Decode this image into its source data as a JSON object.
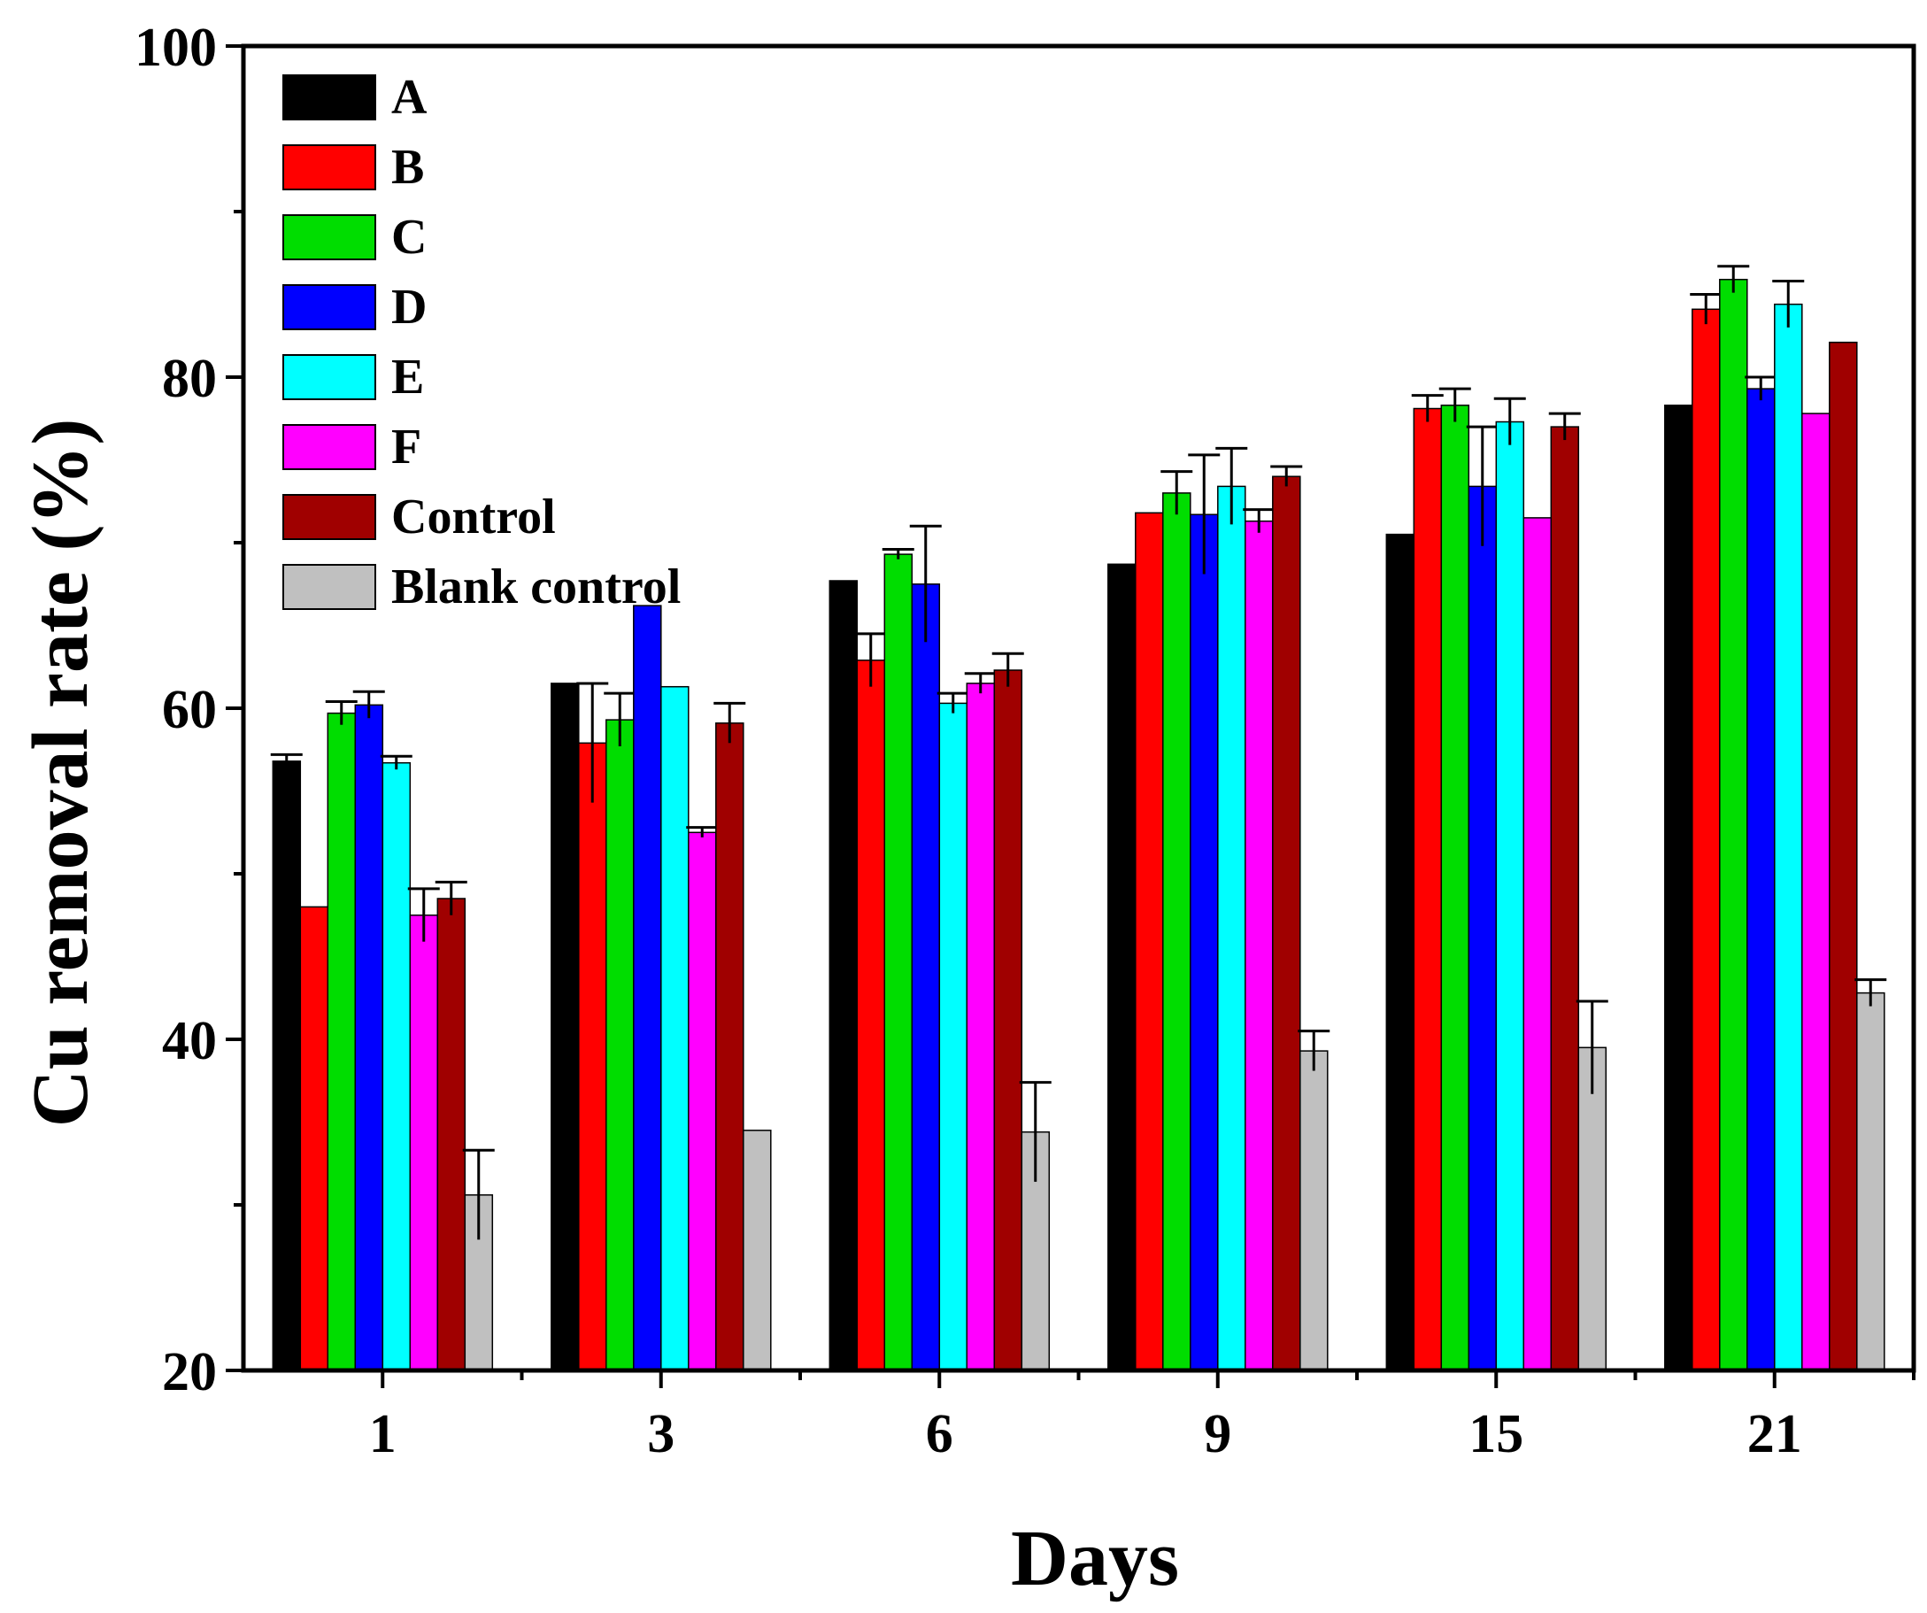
{
  "chart_data": {
    "type": "bar",
    "title": "",
    "xlabel": "Days",
    "ylabel": "Cu removal rate (%)",
    "ylim": [
      20,
      100
    ],
    "yticks": [
      "20",
      "40",
      "60",
      "80",
      "100"
    ],
    "categories": [
      "1",
      "3",
      "6",
      "9",
      "15",
      "21"
    ],
    "legend_position": "top-left",
    "series": [
      {
        "name": "A",
        "color": "#000000",
        "values": [
          56.8,
          61.5,
          67.7,
          68.7,
          70.5,
          78.3
        ],
        "errors": [
          0.4,
          0.1,
          0.1,
          0.1,
          0.1,
          0.1
        ]
      },
      {
        "name": "B",
        "color": "#ff0000",
        "values": [
          48.0,
          57.9,
          62.9,
          71.8,
          78.1,
          84.1
        ],
        "errors": [
          0.2,
          3.6,
          1.6,
          0.2,
          0.8,
          0.9
        ]
      },
      {
        "name": "C",
        "color": "#00dd00",
        "values": [
          59.7,
          59.3,
          69.3,
          73.0,
          78.3,
          85.9
        ],
        "errors": [
          0.7,
          1.6,
          0.3,
          1.3,
          1.0,
          0.8
        ]
      },
      {
        "name": "D",
        "color": "#0000ff",
        "values": [
          60.2,
          66.2,
          67.5,
          71.7,
          73.4,
          79.3
        ],
        "errors": [
          0.8,
          0.1,
          3.5,
          3.6,
          3.6,
          0.7
        ]
      },
      {
        "name": "E",
        "color": "#00ffff",
        "values": [
          56.7,
          61.3,
          60.3,
          73.4,
          77.3,
          84.4
        ],
        "errors": [
          0.4,
          0.2,
          0.6,
          2.3,
          1.4,
          1.4
        ]
      },
      {
        "name": "F",
        "color": "#ff00ff",
        "values": [
          47.5,
          52.5,
          61.5,
          71.3,
          71.5,
          77.8
        ],
        "errors": [
          1.6,
          0.3,
          0.6,
          0.7,
          0.1,
          0.1
        ]
      },
      {
        "name": "Control",
        "color": "#a00000",
        "values": [
          48.5,
          59.1,
          62.3,
          74.0,
          77.0,
          82.1
        ],
        "errors": [
          1.0,
          1.2,
          1.0,
          0.6,
          0.8,
          0.2
        ]
      },
      {
        "name": "Blank control",
        "color": "#c0c0c0",
        "values": [
          30.6,
          34.5,
          34.4,
          39.3,
          39.5,
          42.8
        ],
        "errors": [
          2.7,
          0.1,
          3.0,
          1.2,
          2.8,
          0.8
        ]
      }
    ]
  }
}
